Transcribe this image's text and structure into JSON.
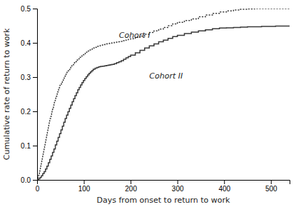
{
  "chart_data": {
    "type": "step",
    "xlabel": "Days from onset to return to work",
    "ylabel": "Cumulative rate of return to work",
    "xlim": [
      0,
      540
    ],
    "ylim": [
      0.0,
      0.5
    ],
    "xticks": [
      0,
      100,
      200,
      300,
      400,
      500
    ],
    "yticks": [
      {
        "value": 0.0,
        "label": "0.0"
      },
      0.1,
      0.2,
      0.3,
      0.4,
      0.5
    ],
    "series": [
      {
        "color": "#3a3a3a",
        "line_style": "dotted",
        "x": [
          0,
          1,
          2,
          3,
          4,
          5,
          6,
          7,
          8,
          9,
          10,
          11,
          12,
          13,
          14,
          15,
          16,
          17,
          18,
          19,
          20,
          21,
          22,
          23,
          24,
          25,
          26,
          27,
          28,
          29,
          30,
          31,
          32,
          33,
          34,
          35,
          36,
          37,
          38,
          39,
          40,
          41,
          42,
          43,
          44,
          45,
          46,
          47,
          48,
          49,
          50,
          52,
          54,
          56,
          58,
          60,
          62,
          64,
          66,
          68,
          70,
          72,
          74,
          76,
          78,
          80,
          82,
          84,
          86,
          88,
          90,
          92,
          94,
          96,
          98,
          100,
          103,
          106,
          109,
          112,
          115,
          118,
          121,
          124,
          127,
          130,
          135,
          140,
          145,
          150,
          155,
          160,
          165,
          170,
          175,
          180,
          185,
          190,
          195,
          200,
          210,
          220,
          230,
          240,
          250,
          260,
          270,
          280,
          290,
          300,
          315,
          330,
          345,
          360,
          375,
          390,
          405,
          420,
          435,
          450,
          465,
          480,
          495,
          510,
          525,
          540
        ],
        "values": [
          0,
          0.004,
          0.008,
          0.013,
          0.018,
          0.023,
          0.028,
          0.035,
          0.042,
          0.05,
          0.057,
          0.064,
          0.071,
          0.079,
          0.086,
          0.093,
          0.1,
          0.107,
          0.114,
          0.121,
          0.128,
          0.135,
          0.142,
          0.148,
          0.154,
          0.161,
          0.167,
          0.173,
          0.179,
          0.185,
          0.191,
          0.196,
          0.201,
          0.206,
          0.211,
          0.216,
          0.221,
          0.226,
          0.231,
          0.236,
          0.24,
          0.244,
          0.249,
          0.253,
          0.257,
          0.261,
          0.265,
          0.269,
          0.272,
          0.276,
          0.279,
          0.285,
          0.29,
          0.295,
          0.3,
          0.305,
          0.31,
          0.314,
          0.318,
          0.322,
          0.326,
          0.33,
          0.333,
          0.336,
          0.339,
          0.342,
          0.345,
          0.348,
          0.35,
          0.353,
          0.356,
          0.358,
          0.361,
          0.363,
          0.365,
          0.367,
          0.37,
          0.373,
          0.376,
          0.379,
          0.381,
          0.383,
          0.385,
          0.387,
          0.389,
          0.39,
          0.393,
          0.395,
          0.397,
          0.398,
          0.399,
          0.4,
          0.401,
          0.402,
          0.403,
          0.404,
          0.406,
          0.408,
          0.41,
          0.412,
          0.416,
          0.42,
          0.425,
          0.43,
          0.435,
          0.44,
          0.445,
          0.45,
          0.455,
          0.46,
          0.465,
          0.47,
          0.476,
          0.481,
          0.486,
          0.49,
          0.493,
          0.496,
          0.498,
          0.499,
          0.5,
          0.5,
          0.5,
          0.5,
          0.5,
          0.5
        ]
      },
      {
        "color": "#3a3a3a",
        "line_style": "solid",
        "x": [
          0,
          3,
          6,
          9,
          12,
          15,
          18,
          21,
          24,
          27,
          30,
          33,
          36,
          39,
          42,
          45,
          48,
          51,
          54,
          57,
          60,
          63,
          66,
          69,
          72,
          75,
          78,
          81,
          84,
          87,
          90,
          93,
          96,
          99,
          102,
          105,
          108,
          111,
          114,
          117,
          120,
          124,
          128,
          132,
          136,
          140,
          144,
          148,
          152,
          156,
          160,
          165,
          170,
          175,
          180,
          185,
          190,
          195,
          200,
          210,
          220,
          230,
          240,
          250,
          260,
          270,
          280,
          290,
          300,
          315,
          330,
          345,
          360,
          375,
          390,
          405,
          420,
          435,
          450,
          465,
          480,
          495,
          510,
          525,
          540
        ],
        "values": [
          0,
          0.003,
          0.007,
          0.012,
          0.018,
          0.024,
          0.032,
          0.04,
          0.05,
          0.06,
          0.07,
          0.08,
          0.09,
          0.102,
          0.113,
          0.124,
          0.135,
          0.146,
          0.157,
          0.168,
          0.179,
          0.189,
          0.199,
          0.209,
          0.218,
          0.228,
          0.237,
          0.246,
          0.254,
          0.263,
          0.27,
          0.277,
          0.284,
          0.29,
          0.296,
          0.301,
          0.306,
          0.311,
          0.315,
          0.319,
          0.323,
          0.326,
          0.328,
          0.33,
          0.331,
          0.332,
          0.333,
          0.334,
          0.335,
          0.336,
          0.337,
          0.339,
          0.342,
          0.345,
          0.348,
          0.352,
          0.356,
          0.36,
          0.364,
          0.371,
          0.378,
          0.385,
          0.391,
          0.397,
          0.403,
          0.408,
          0.413,
          0.418,
          0.422,
          0.427,
          0.431,
          0.435,
          0.438,
          0.441,
          0.443,
          0.444,
          0.445,
          0.446,
          0.447,
          0.447,
          0.448,
          0.448,
          0.449,
          0.449,
          0.449
        ]
      }
    ],
    "annotations": [
      {
        "text": "Cohort I",
        "x": 175,
        "y": 0.415
      },
      {
        "text": "Cohort II",
        "x": 240,
        "y": 0.295
      }
    ]
  }
}
